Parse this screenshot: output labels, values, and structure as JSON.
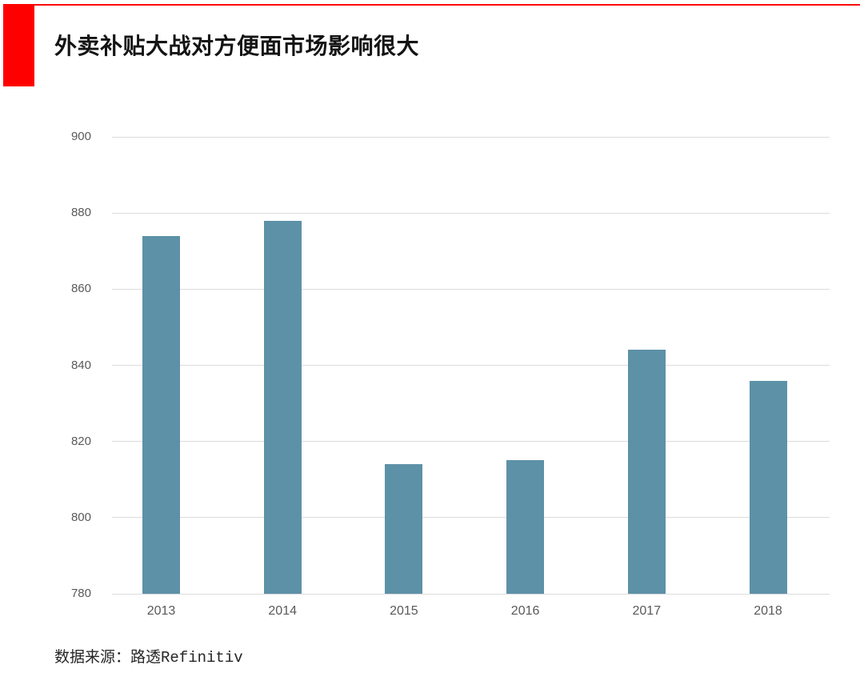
{
  "header": {
    "title": "外卖补贴大战对方便面市场影响很大",
    "accent_color": "#fe0000"
  },
  "footer": {
    "source": "数据来源：路透Refinitiv"
  },
  "chart_data": {
    "type": "bar",
    "title": "外卖补贴大战对方便面市场影响很大",
    "categories": [
      "2013",
      "2014",
      "2015",
      "2016",
      "2017",
      "2018"
    ],
    "values": [
      874,
      878,
      814,
      815,
      844,
      836
    ],
    "xlabel": "",
    "ylabel": "",
    "ylim": [
      780,
      900
    ],
    "yticks": [
      780,
      800,
      820,
      840,
      860,
      880,
      900
    ],
    "grid": true,
    "legend": "none",
    "bar_color": "#5d91a7",
    "gridline_color": "#dcdcdc",
    "tick_label_color": "#595959",
    "source_label": "数据来源：路透Refinitiv"
  }
}
